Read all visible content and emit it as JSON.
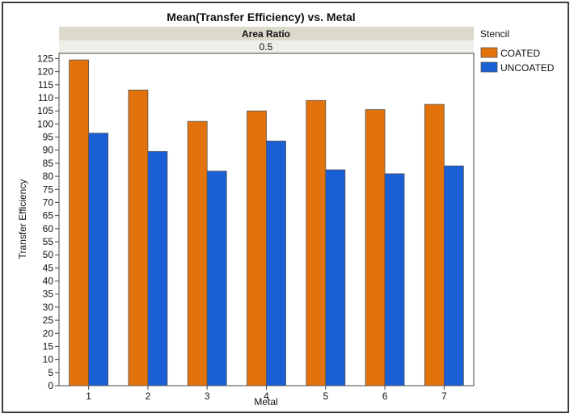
{
  "chart_data": {
    "type": "bar",
    "title": "Mean(Transfer Efficiency) vs. Metal",
    "group_header": {
      "label": "Area Ratio",
      "value": "0.5"
    },
    "xlabel": "Metal",
    "ylabel": "Transfer Efficiency",
    "categories": [
      "1",
      "2",
      "3",
      "4",
      "5",
      "6",
      "7"
    ],
    "ylim": [
      0,
      127
    ],
    "yticks": [
      0,
      5,
      10,
      15,
      20,
      25,
      30,
      35,
      40,
      45,
      50,
      55,
      60,
      65,
      70,
      75,
      80,
      85,
      90,
      95,
      100,
      105,
      110,
      115,
      120,
      125
    ],
    "legend": {
      "title": "Stencil",
      "placement": "right"
    },
    "series": [
      {
        "name": "COATED",
        "color": "#e2720c",
        "values": [
          124.5,
          113,
          101,
          105,
          109,
          105.5,
          107.5
        ]
      },
      {
        "name": "UNCOATED",
        "color": "#1a5fd6",
        "values": [
          96.5,
          89.5,
          82,
          93.5,
          82.5,
          81,
          84
        ]
      }
    ],
    "grid": false
  }
}
